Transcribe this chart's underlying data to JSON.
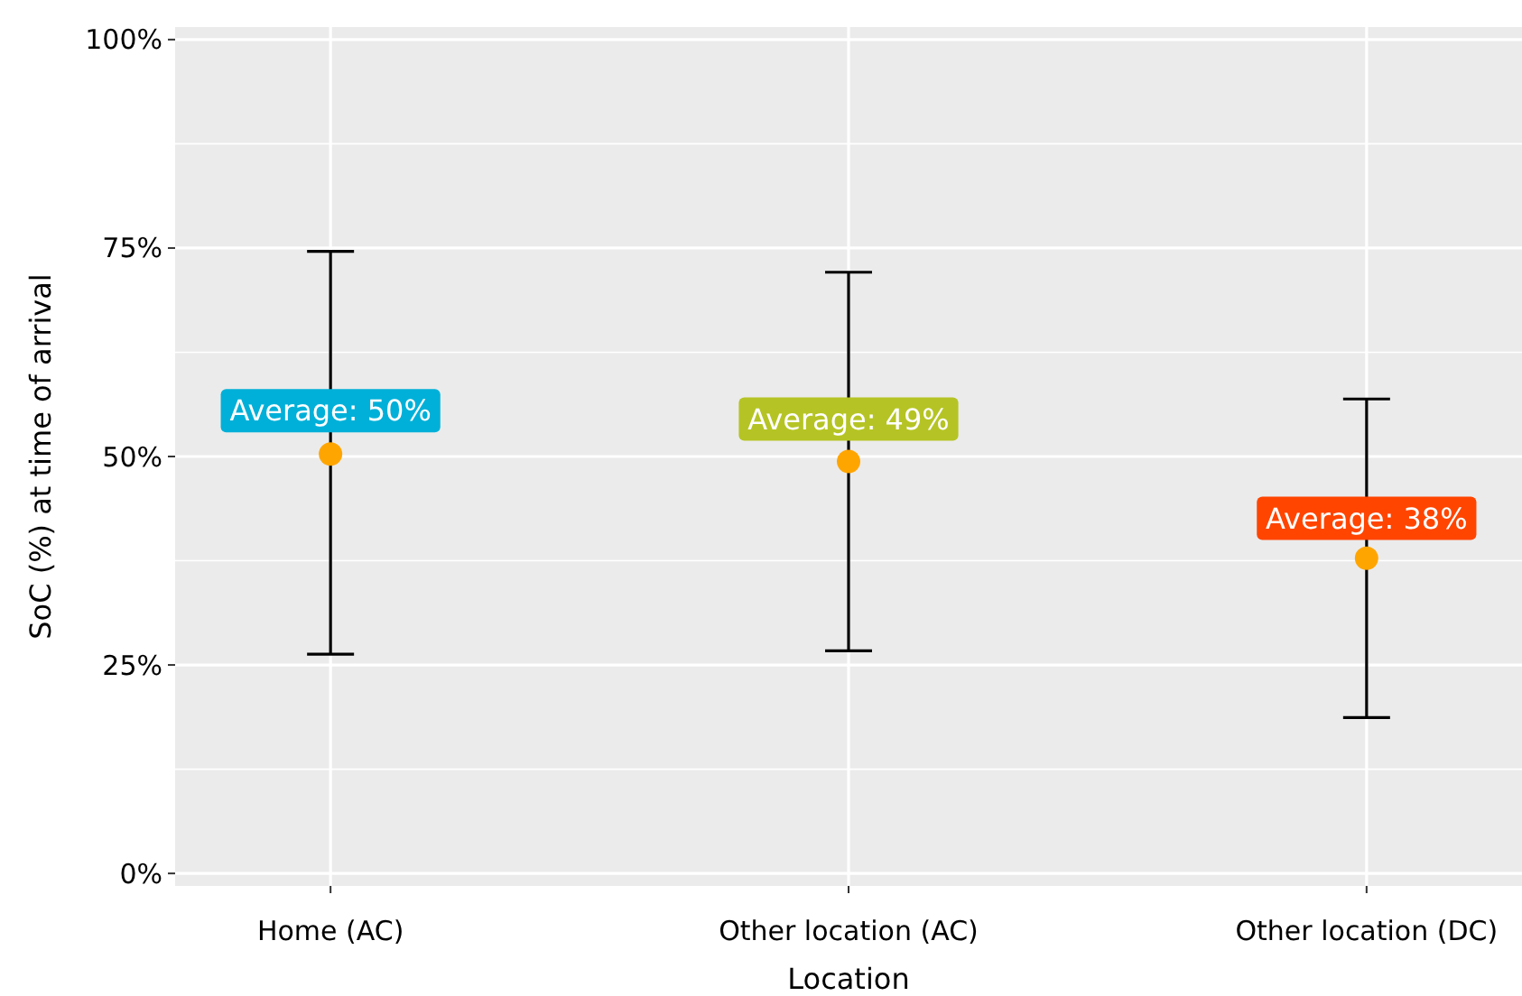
{
  "chart_data": {
    "type": "scatter",
    "xlabel": "Location",
    "ylabel": "SoC (%) at time of arrival",
    "categories": [
      "Home (AC)",
      "Other location (AC)",
      "Other location (DC)"
    ],
    "series": [
      {
        "color": "#ffa500",
        "values": [
          50.3,
          49.4,
          37.8
        ],
        "errors": [
          [
            26.3,
            74.6
          ],
          [
            26.7,
            72.1
          ],
          [
            18.7,
            56.9
          ]
        ]
      }
    ],
    "ylim": [
      -1.5,
      101.5
    ],
    "yticks": [
      {
        "value": 0,
        "label": "0%"
      },
      {
        "value": 25,
        "label": "25%"
      },
      {
        "value": 50,
        "label": "50%"
      },
      {
        "value": 75,
        "label": "75%"
      },
      {
        "value": 100,
        "label": "100%"
      }
    ],
    "grid": true,
    "marker": "circle",
    "annotations": [
      {
        "text": "Average: 50%",
        "x": "Home (AC)",
        "y": 55.5
      },
      {
        "text": "Average: 49%",
        "x": "Other location (AC)",
        "y": 54.5
      },
      {
        "text": "Average: 38%",
        "x": "Other location (DC)",
        "y": 42.6
      }
    ]
  }
}
